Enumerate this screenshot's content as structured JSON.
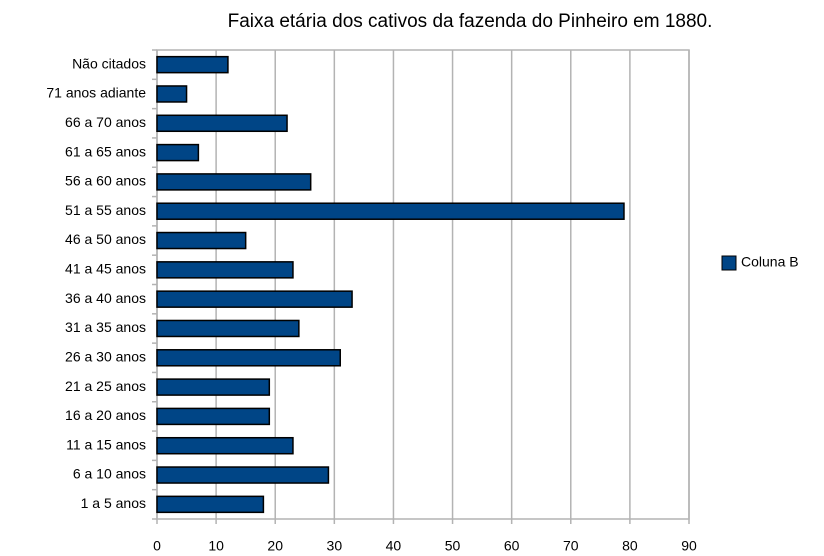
{
  "chart_data": {
    "type": "barh",
    "title": "Faixa etária dos cativos da fazenda do Pinheiro em 1880.",
    "categories": [
      "Não citados",
      "71 anos adiante",
      "66 a 70 anos",
      "61 a 65 anos",
      "56 a 60 anos",
      "51 a 55 anos",
      "46 a 50 anos",
      "41 a 45 anos",
      "36 a 40 anos",
      "31 a 35 anos",
      "26 a 30 anos",
      "21 a 25 anos",
      "16 a 20 anos",
      "11 a 15 anos",
      "6 a 10 anos",
      "1 a 5 anos"
    ],
    "series": [
      {
        "name": "Coluna B",
        "color": "#004586",
        "values": [
          12,
          5,
          22,
          7,
          26,
          79,
          15,
          23,
          33,
          24,
          31,
          19,
          19,
          23,
          29,
          18
        ]
      }
    ],
    "xlim": [
      0,
      90
    ],
    "xticks": [
      0,
      10,
      20,
      30,
      40,
      50,
      60,
      70,
      80,
      90
    ],
    "grid": true,
    "legend": "right"
  }
}
